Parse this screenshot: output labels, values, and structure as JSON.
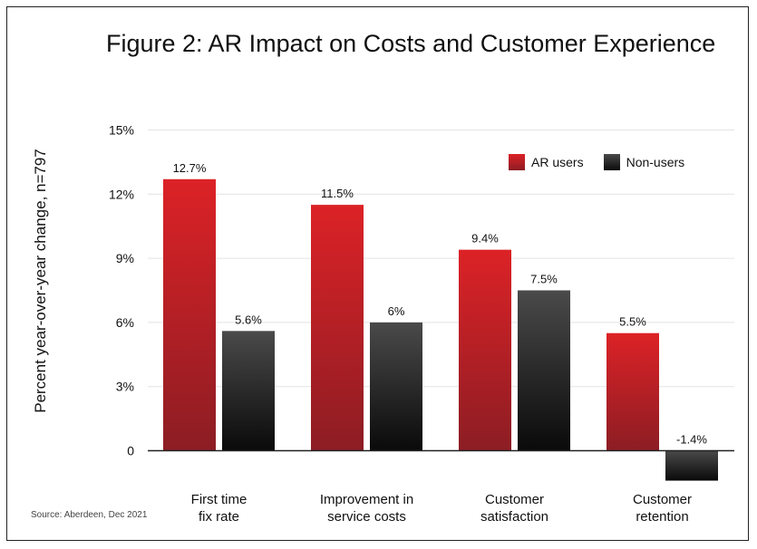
{
  "chart_data": {
    "type": "bar",
    "title": "Figure 2: AR Impact on Costs and Customer Experience",
    "ylabel": "Percent year-over-year change, n=797",
    "xlabel": "",
    "source": "Source: Aberdeen, Dec 2021",
    "ylim": [
      -1.6,
      15
    ],
    "yticks": [
      {
        "value": 15,
        "label": "15%"
      },
      {
        "value": 12,
        "label": "12%"
      },
      {
        "value": 9,
        "label": "9%"
      },
      {
        "value": 6,
        "label": "6%"
      },
      {
        "value": 3,
        "label": "3%"
      },
      {
        "value": 0,
        "label": "0"
      }
    ],
    "categories": [
      [
        "First time",
        "fix rate"
      ],
      [
        "Improvement in",
        "service costs"
      ],
      [
        "Customer",
        "satisfaction"
      ],
      [
        "Customer",
        "retention"
      ]
    ],
    "series": [
      {
        "name": "AR users",
        "key": "ar",
        "values": [
          12.7,
          11.5,
          9.4,
          5.5
        ],
        "labels": [
          "12.7%",
          "11.5%",
          "9.4%",
          "5.5%"
        ]
      },
      {
        "name": "Non-users",
        "key": "non",
        "values": [
          5.6,
          6.0,
          7.5,
          -1.4
        ],
        "labels": [
          "5.6%",
          "6%",
          "7.5%",
          "-1.4%"
        ]
      }
    ],
    "grid": true,
    "legend_position": "top-right",
    "colors": {
      "ar_top": "#dc2226",
      "ar_bottom": "#8c1d24",
      "non_top": "#4a4a4a",
      "non_bottom": "#0a0a0a",
      "grid": "#e3e3e3",
      "axis": "#222222"
    }
  }
}
